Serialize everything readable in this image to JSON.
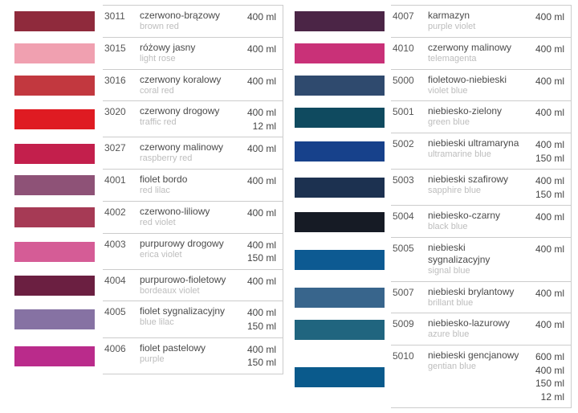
{
  "left": [
    {
      "code": "3011",
      "name_pl": "czerwono-brązowy",
      "name_en": "brown red",
      "sizes": "400 ml",
      "color": "#8f2a3c"
    },
    {
      "code": "3015",
      "name_pl": "różowy jasny",
      "name_en": "light rose",
      "sizes": "400 ml",
      "color": "#f0a0b0"
    },
    {
      "code": "3016",
      "name_pl": "czerwony koralowy",
      "name_en": "coral red",
      "sizes": "400 ml",
      "color": "#c2383f"
    },
    {
      "code": "3020",
      "name_pl": "czerwony drogowy",
      "name_en": "traffic red",
      "sizes": "400 ml\n12 ml",
      "color": "#df1b22"
    },
    {
      "code": "3027",
      "name_pl": "czerwony malinowy",
      "name_en": "raspberry red",
      "sizes": "400 ml",
      "color": "#c31f4c"
    },
    {
      "code": "4001",
      "name_pl": "fiolet bordo",
      "name_en": "red lilac",
      "sizes": "400 ml",
      "color": "#8e5277"
    },
    {
      "code": "4002",
      "name_pl": "czerwono-liliowy",
      "name_en": "red violet",
      "sizes": "400 ml",
      "color": "#a63a55"
    },
    {
      "code": "4003",
      "name_pl": "purpurowy drogowy",
      "name_en": "erica violet",
      "sizes": "400 ml\n150 ml",
      "color": "#d55c96"
    },
    {
      "code": "4004",
      "name_pl": "purpurowo-fioletowy",
      "name_en": "bordeaux violet",
      "sizes": "400 ml",
      "color": "#6b1f41"
    },
    {
      "code": "4005",
      "name_pl": "fiolet sygnalizacyjny",
      "name_en": "blue lilac",
      "sizes": "400 ml\n150 ml",
      "color": "#8672a3"
    },
    {
      "code": "4006",
      "name_pl": "fiolet pastelowy",
      "name_en": "purple",
      "sizes": "400 ml\n150 ml",
      "color": "#ba2b8b"
    }
  ],
  "right": [
    {
      "code": "4007",
      "name_pl": "karmazyn",
      "name_en": "purple violet",
      "sizes": "400 ml",
      "color": "#4b2546"
    },
    {
      "code": "4010",
      "name_pl": "czerwony malinowy",
      "name_en": "telemagenta",
      "sizes": "400 ml",
      "color": "#c93178"
    },
    {
      "code": "5000",
      "name_pl": "fioletowo-niebieski",
      "name_en": "violet blue",
      "sizes": "400 ml",
      "color": "#2f4a6e"
    },
    {
      "code": "5001",
      "name_pl": "niebiesko-zielony",
      "name_en": "green blue",
      "sizes": "400 ml",
      "color": "#0f4a5f"
    },
    {
      "code": "5002",
      "name_pl": "niebieski ultramaryna",
      "name_en": "ultramarine blue",
      "sizes": "400 ml\n150 ml",
      "color": "#17418b"
    },
    {
      "code": "5003",
      "name_pl": "niebieski szafirowy",
      "name_en": "sapphire blue",
      "sizes": "400 ml\n150 ml",
      "color": "#1c3150"
    },
    {
      "code": "5004",
      "name_pl": "niebiesko-czarny",
      "name_en": "black blue",
      "sizes": "400 ml",
      "color": "#161b25"
    },
    {
      "code": "5005",
      "name_pl": "niebieski sygnalizacyjny",
      "name_en": "signal blue",
      "sizes": "400 ml",
      "color": "#0d5a92"
    },
    {
      "code": "5007",
      "name_pl": "niebieski brylantowy",
      "name_en": "brillant blue",
      "sizes": "400 ml",
      "color": "#38658c"
    },
    {
      "code": "5009",
      "name_pl": "niebiesko-lazurowy",
      "name_en": "azure blue",
      "sizes": "400 ml",
      "color": "#20657f"
    },
    {
      "code": "5010",
      "name_pl": "niebieski gencjanowy",
      "name_en": "gentian blue",
      "sizes": "600 ml\n400 ml\n150 ml\n12 ml",
      "color": "#0a5a8c"
    }
  ]
}
